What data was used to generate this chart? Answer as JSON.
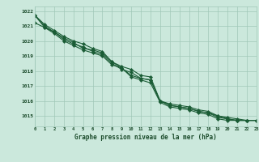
{
  "xlabel": "Graphe pression niveau de la mer (hPa)",
  "background_color": "#cbe8dc",
  "plot_bg_color": "#cbe8dc",
  "grid_color": "#a0c8b8",
  "line_color": "#1a5c35",
  "ylim": [
    1014.3,
    1022.3
  ],
  "xlim": [
    0,
    23
  ],
  "yticks": [
    1015,
    1016,
    1017,
    1018,
    1019,
    1020,
    1021,
    1022
  ],
  "xticks": [
    0,
    1,
    2,
    3,
    4,
    5,
    6,
    7,
    8,
    9,
    10,
    11,
    12,
    13,
    14,
    15,
    16,
    17,
    18,
    19,
    20,
    21,
    22,
    23
  ],
  "series": [
    [
      1021.7,
      1021.1,
      1020.7,
      1020.3,
      1020.0,
      1019.8,
      1019.5,
      1019.3,
      1018.6,
      1018.3,
      1018.1,
      1017.7,
      1017.6,
      1016.0,
      1015.8,
      1015.7,
      1015.6,
      1015.4,
      1015.3,
      1015.0,
      1014.9,
      1014.8,
      1014.7,
      1014.7
    ],
    [
      1021.7,
      1021.0,
      1020.6,
      1020.1,
      1019.8,
      1019.6,
      1019.3,
      1019.1,
      1018.5,
      1018.1,
      1017.9,
      1017.5,
      1017.4,
      1016.0,
      1015.7,
      1015.6,
      1015.5,
      1015.3,
      1015.2,
      1015.0,
      1014.8,
      1014.7,
      1014.7,
      1014.7
    ],
    [
      1021.7,
      1020.9,
      1020.6,
      1020.2,
      1019.9,
      1019.5,
      1019.4,
      1019.2,
      1018.6,
      1018.2,
      1017.7,
      1017.5,
      1017.4,
      1016.0,
      1015.7,
      1015.6,
      1015.5,
      1015.3,
      1015.2,
      1014.9,
      1014.8,
      1014.7,
      1014.7,
      1014.7
    ],
    [
      1021.2,
      1020.9,
      1020.5,
      1020.0,
      1019.7,
      1019.4,
      1019.2,
      1019.0,
      1018.4,
      1018.2,
      1017.6,
      1017.4,
      1017.2,
      1015.9,
      1015.6,
      1015.5,
      1015.4,
      1015.2,
      1015.1,
      1014.8,
      1014.7,
      1014.7,
      1014.7,
      1014.7
    ]
  ]
}
